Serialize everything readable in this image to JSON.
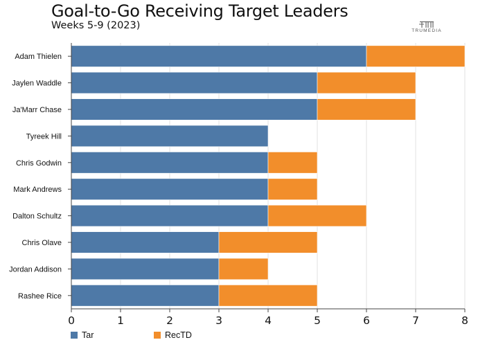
{
  "header": {
    "title": "Goal-to-Go Receiving Target Leaders",
    "subtitle": "Weeks 5-9 (2023)",
    "brand": "TRUMEDIA"
  },
  "chart_data": {
    "type": "bar",
    "orientation": "horizontal",
    "stacked": true,
    "title": "Goal-to-Go Receiving Target Leaders",
    "subtitle": "Weeks 5-9 (2023)",
    "xlabel": "",
    "ylabel": "",
    "xlim": [
      0,
      8
    ],
    "x_ticks": [
      0,
      1,
      2,
      3,
      4,
      5,
      6,
      7,
      8
    ],
    "grid": true,
    "legend_position": "bottom-left",
    "categories": [
      "Adam Thielen",
      "Jaylen Waddle",
      "Ja'Marr Chase",
      "Tyreek Hill",
      "Chris Godwin",
      "Mark Andrews",
      "Dalton Schultz",
      "Chris Olave",
      "Jordan Addison",
      "Rashee Rice"
    ],
    "series": [
      {
        "name": "Tar",
        "color": "#4e79a7",
        "values": [
          6,
          5,
          5,
          4,
          4,
          4,
          4,
          3,
          3,
          3
        ]
      },
      {
        "name": "RecTD",
        "color": "#f28e2b",
        "values": [
          2,
          2,
          2,
          0,
          1,
          1,
          2,
          2,
          1,
          2
        ]
      }
    ]
  }
}
